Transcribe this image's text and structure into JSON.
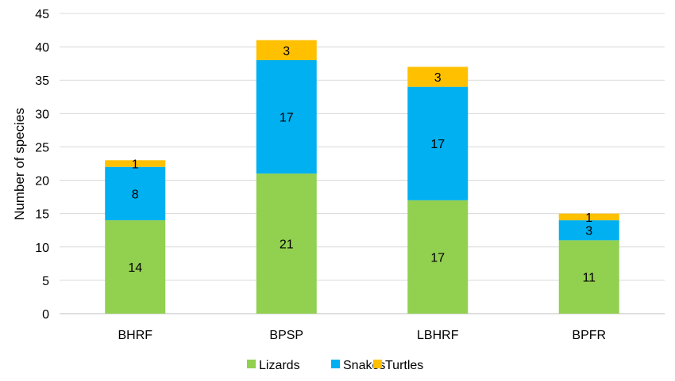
{
  "chart_data": {
    "type": "bar",
    "stacked": true,
    "categories": [
      "BHRF",
      "BPSP",
      "LBHRF",
      "BPFR"
    ],
    "series": [
      {
        "name": "Lizards",
        "color": "#92D050",
        "values": [
          14,
          21,
          17,
          11
        ]
      },
      {
        "name": "Snakes",
        "color": "#00B0F0",
        "values": [
          8,
          17,
          17,
          3
        ]
      },
      {
        "name": "Turtles",
        "color": "#FFC000",
        "values": [
          1,
          3,
          3,
          1
        ]
      }
    ],
    "title": "",
    "xlabel": "",
    "ylabel": "Number of species",
    "ylim": [
      0,
      45
    ],
    "yticks": [
      0,
      5,
      10,
      15,
      20,
      25,
      30,
      35,
      40,
      45
    ],
    "grid": true,
    "legend_position": "bottom"
  }
}
